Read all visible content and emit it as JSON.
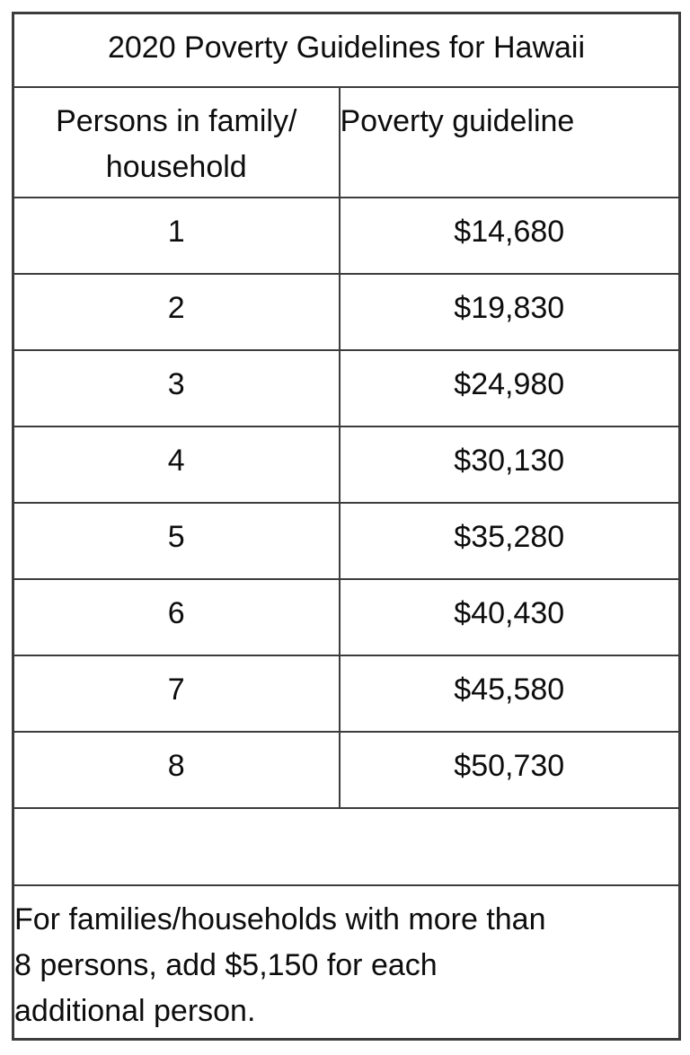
{
  "table": {
    "title": "2020 Poverty Guidelines for Hawaii",
    "columns": [
      "Persons in family/\nhousehold",
      "Poverty guideline"
    ],
    "rows": [
      [
        "1",
        "$14,680"
      ],
      [
        "2",
        "$19,830"
      ],
      [
        "3",
        "$24,980"
      ],
      [
        "4",
        "$30,130"
      ],
      [
        "5",
        "$35,280"
      ],
      [
        "6",
        "$40,430"
      ],
      [
        "7",
        "$45,580"
      ],
      [
        "8",
        "$50,730"
      ]
    ],
    "note": "For families/households with more than\n8 persons, add $5,150 for each\nadditional person."
  },
  "chart_data": {
    "type": "table",
    "title": "2020 Poverty Guidelines for Hawaii",
    "columns": [
      "Persons in family/household",
      "Poverty guideline"
    ],
    "categories": [
      1,
      2,
      3,
      4,
      5,
      6,
      7,
      8
    ],
    "values": [
      14680,
      19830,
      24980,
      30130,
      35280,
      40430,
      45580,
      50730
    ],
    "note": "For families/households with more than 8 persons, add $5,150 for each additional person.",
    "additional_person_increment": 5150
  },
  "colors": {
    "border": "#3c3c3c",
    "text": "#0d0d0d",
    "background": "#ffffff"
  }
}
